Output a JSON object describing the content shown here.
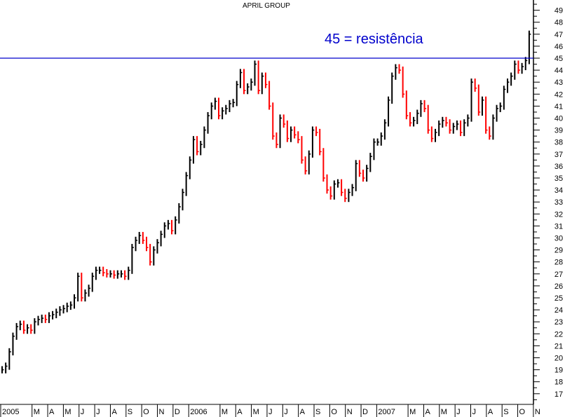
{
  "chart_data": {
    "type": "bar",
    "subtype": "price-bars (weekly approximation of daily bars)",
    "title": "APRIL GROUP",
    "annotation": "45 = resistência",
    "resistance_level": 45,
    "ylim": [
      16.5,
      49.5
    ],
    "y_ticks": [
      17,
      18,
      19,
      20,
      21,
      22,
      23,
      24,
      25,
      26,
      27,
      28,
      29,
      30,
      31,
      32,
      33,
      34,
      35,
      36,
      37,
      38,
      39,
      40,
      41,
      42,
      43,
      44,
      45,
      46,
      47,
      48,
      49
    ],
    "y_axis_side": "right",
    "x_tick_labels": [
      "2005",
      "",
      "M",
      "A",
      "M",
      "J",
      "J",
      "A",
      "S",
      "O",
      "N",
      "D",
      "2006",
      "",
      "M",
      "A",
      "M",
      "J",
      "J",
      "A",
      "S",
      "O",
      "N",
      "D",
      "2007",
      "",
      "M",
      "A",
      "M",
      "J",
      "J",
      "A",
      "S",
      "O",
      "N"
    ],
    "grid": false,
    "colors": {
      "up": "#000000",
      "down": "#ff0000",
      "resistance": "#0000cc",
      "annotation": "#0000cc"
    },
    "weekly_close": [
      19.0,
      19.3,
      20.5,
      21.8,
      22.6,
      22.8,
      22.3,
      22.5,
      22.3,
      23.0,
      23.2,
      23.3,
      23.2,
      23.5,
      23.6,
      23.8,
      24.0,
      24.1,
      24.3,
      24.4,
      25.0,
      26.8,
      25.0,
      25.4,
      25.8,
      26.8,
      27.3,
      27.3,
      27.1,
      27.0,
      27.0,
      26.9,
      27.0,
      27.0,
      26.8,
      27.3,
      29.2,
      29.8,
      30.2,
      29.8,
      29.2,
      28.0,
      29.0,
      29.6,
      30.3,
      31.0,
      31.2,
      30.6,
      31.5,
      32.6,
      33.8,
      35.2,
      36.5,
      38.2,
      37.2,
      37.8,
      39.0,
      40.2,
      41.0,
      41.4,
      40.2,
      40.6,
      40.8,
      41.2,
      41.3,
      42.8,
      43.8,
      42.3,
      42.6,
      43.0,
      44.5,
      42.3,
      43.5,
      42.8,
      41.0,
      38.5,
      37.8,
      40.0,
      39.5,
      38.3,
      39.0,
      38.6,
      38.2,
      36.5,
      35.6,
      37.0,
      39.0,
      38.8,
      37.2,
      35.0,
      34.0,
      33.5,
      34.5,
      34.6,
      33.8,
      33.3,
      33.8,
      34.2,
      36.2,
      35.4,
      35.0,
      35.8,
      36.8,
      38.0,
      38.0,
      38.5,
      39.6,
      41.5,
      43.5,
      44.2,
      44.0,
      42.0,
      40.2,
      39.6,
      39.8,
      40.4,
      41.2,
      40.8,
      39.0,
      38.3,
      38.8,
      39.5,
      39.8,
      39.6,
      39.0,
      39.3,
      39.5,
      38.8,
      39.6,
      40.0,
      43.0,
      42.5,
      40.5,
      41.5,
      39.0,
      38.5,
      40.0,
      40.8,
      41.0,
      42.4,
      43.0,
      43.5,
      44.5,
      44.0,
      44.3,
      44.8,
      47.0
    ]
  }
}
